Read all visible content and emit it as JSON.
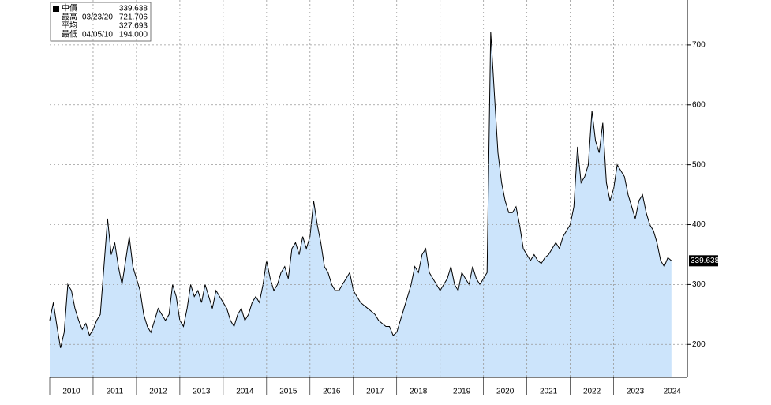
{
  "chart_data": {
    "type": "area",
    "legend": [
      {
        "label": "中價",
        "value": 339.638
      },
      {
        "label": "最高",
        "date": "03/23/20",
        "value": 721.706
      },
      {
        "label": "平均",
        "value": 327.693
      },
      {
        "label": "最低",
        "date": "04/05/10",
        "value": 194,
        "value_label": "194.000"
      }
    ],
    "x": [
      2010,
      2010.083,
      2010.167,
      2010.25,
      2010.333,
      2010.417,
      2010.5,
      2010.583,
      2010.667,
      2010.75,
      2010.833,
      2010.917,
      2011,
      2011.083,
      2011.167,
      2011.25,
      2011.333,
      2011.417,
      2011.5,
      2011.583,
      2011.667,
      2011.75,
      2011.833,
      2011.917,
      2012,
      2012.083,
      2012.167,
      2012.25,
      2012.333,
      2012.417,
      2012.5,
      2012.583,
      2012.667,
      2012.75,
      2012.833,
      2012.917,
      2013,
      2013.083,
      2013.167,
      2013.25,
      2013.333,
      2013.417,
      2013.5,
      2013.583,
      2013.667,
      2013.75,
      2013.833,
      2013.917,
      2014,
      2014.083,
      2014.167,
      2014.25,
      2014.333,
      2014.417,
      2014.5,
      2014.583,
      2014.667,
      2014.75,
      2014.833,
      2014.917,
      2015,
      2015.083,
      2015.167,
      2015.25,
      2015.333,
      2015.417,
      2015.5,
      2015.583,
      2015.667,
      2015.75,
      2015.833,
      2015.917,
      2016,
      2016.083,
      2016.167,
      2016.25,
      2016.333,
      2016.417,
      2016.5,
      2016.583,
      2016.667,
      2016.75,
      2016.833,
      2016.917,
      2017,
      2017.083,
      2017.167,
      2017.25,
      2017.333,
      2017.417,
      2017.5,
      2017.583,
      2017.667,
      2017.75,
      2017.833,
      2017.917,
      2018,
      2018.083,
      2018.167,
      2018.25,
      2018.333,
      2018.417,
      2018.5,
      2018.583,
      2018.667,
      2018.75,
      2018.833,
      2018.917,
      2019,
      2019.083,
      2019.167,
      2019.25,
      2019.333,
      2019.417,
      2019.5,
      2019.583,
      2019.667,
      2019.75,
      2019.833,
      2019.917,
      2020,
      2020.083,
      2020.167,
      2020.25,
      2020.333,
      2020.417,
      2020.5,
      2020.583,
      2020.667,
      2020.75,
      2020.833,
      2020.917,
      2021,
      2021.083,
      2021.167,
      2021.25,
      2021.333,
      2021.417,
      2021.5,
      2021.583,
      2021.667,
      2021.75,
      2021.833,
      2021.917,
      2022,
      2022.083,
      2022.167,
      2022.25,
      2022.333,
      2022.417,
      2022.5,
      2022.583,
      2022.667,
      2022.75,
      2022.833,
      2022.917,
      2023,
      2023.083,
      2023.167,
      2023.25,
      2023.333,
      2023.417,
      2023.5,
      2023.583,
      2023.667,
      2023.75,
      2023.833,
      2023.917,
      2024,
      2024.083,
      2024.167,
      2024.25,
      2024.333
    ],
    "series": [
      {
        "color": "#000000",
        "fill": "#cce4fb",
        "values": [
          240,
          270,
          230,
          194,
          220,
          300,
          290,
          260,
          240,
          225,
          235,
          215,
          225,
          240,
          250,
          330,
          410,
          350,
          370,
          330,
          300,
          340,
          380,
          330,
          310,
          290,
          250,
          230,
          220,
          240,
          260,
          250,
          240,
          250,
          300,
          280,
          240,
          230,
          260,
          300,
          280,
          290,
          270,
          300,
          280,
          260,
          290,
          280,
          270,
          260,
          240,
          230,
          250,
          260,
          240,
          250,
          270,
          280,
          270,
          300,
          340,
          310,
          290,
          300,
          320,
          330,
          310,
          360,
          370,
          350,
          380,
          360,
          380,
          440,
          400,
          370,
          330,
          320,
          300,
          290,
          290,
          300,
          310,
          320,
          290,
          280,
          270,
          265,
          260,
          255,
          250,
          240,
          235,
          230,
          230,
          215,
          220,
          240,
          260,
          280,
          300,
          330,
          320,
          350,
          360,
          320,
          310,
          300,
          290,
          300,
          310,
          330,
          300,
          290,
          320,
          310,
          300,
          330,
          310,
          300,
          310,
          320,
          721.706,
          620,
          520,
          470,
          440,
          420,
          420,
          430,
          400,
          360,
          350,
          340,
          350,
          340,
          335,
          345,
          350,
          360,
          370,
          360,
          380,
          390,
          400,
          430,
          530,
          470,
          480,
          500,
          590,
          540,
          520,
          570,
          470,
          440,
          460,
          500,
          490,
          480,
          450,
          430,
          410,
          440,
          450,
          420,
          400,
          390,
          370,
          340,
          330,
          345,
          339.638
        ]
      }
    ],
    "xlim": [
      2010,
      2024.7
    ],
    "xticks": [
      {
        "value": 2010,
        "label": "2010"
      },
      {
        "value": 2011,
        "label": "2011"
      },
      {
        "value": 2012,
        "label": "2012"
      },
      {
        "value": 2013,
        "label": "2013"
      },
      {
        "value": 2014,
        "label": "2014"
      },
      {
        "value": 2015,
        "label": "2015"
      },
      {
        "value": 2016,
        "label": "2016"
      },
      {
        "value": 2017,
        "label": "2017"
      },
      {
        "value": 2018,
        "label": "2018"
      },
      {
        "value": 2019,
        "label": "2019"
      },
      {
        "value": 2020,
        "label": "2020"
      },
      {
        "value": 2021,
        "label": "2021"
      },
      {
        "value": 2022,
        "label": "2022"
      },
      {
        "value": 2023,
        "label": "2023"
      },
      {
        "value": 2024,
        "label": "2024"
      }
    ],
    "ylim": [
      145,
      775
    ],
    "yticks": [
      200,
      300,
      400,
      500,
      600,
      700
    ],
    "grid": true
  }
}
